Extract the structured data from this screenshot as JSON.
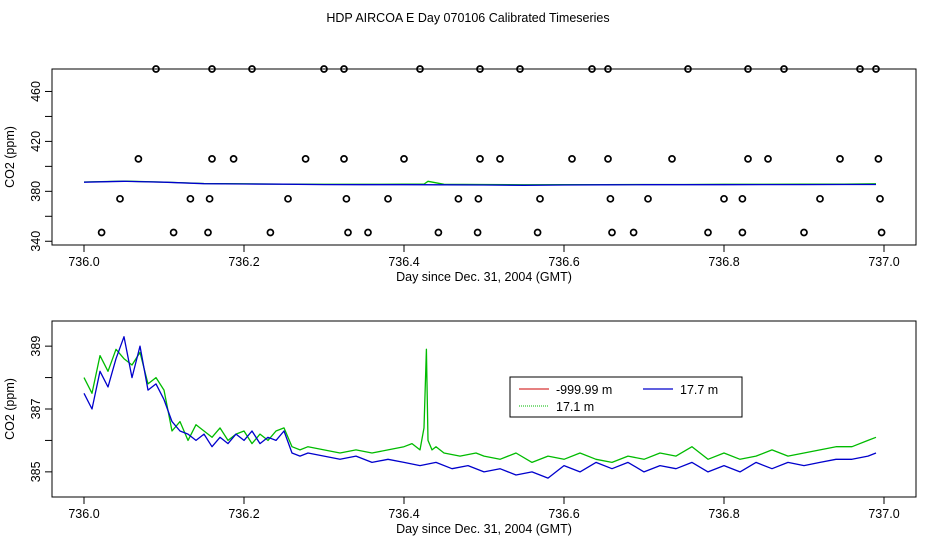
{
  "page": {
    "title": "HDP AIRCOA E  Day 070106  Calibrated Timeseries"
  },
  "chart_data": [
    {
      "type": "scatter",
      "xlabel": "Day since Dec. 31, 2004 (GMT)",
      "ylabel": "CO2 (ppm)",
      "xlim": [
        735.96,
        737.04
      ],
      "ylim": [
        337,
        478
      ],
      "xticks": [
        "736.0",
        "736.2",
        "736.4",
        "736.6",
        "736.8",
        "737.0"
      ],
      "yticks": [
        "340",
        "380",
        "420",
        "460"
      ],
      "xtick_values": [
        736.0,
        736.2,
        736.4,
        736.6,
        736.8,
        737.0
      ],
      "ytick_values": [
        340,
        380,
        420,
        460
      ],
      "ytick_extra_values": [
        360,
        400,
        440
      ],
      "marker_color": "#000000",
      "points": {
        "x": [
          736.09,
          736.16,
          736.21,
          736.3,
          736.325,
          736.42,
          736.495,
          736.545,
          736.635,
          736.655,
          736.755,
          736.83,
          736.875,
          736.97,
          736.99,
          736.068,
          736.16,
          736.187,
          736.277,
          736.325,
          736.4,
          736.495,
          736.52,
          736.61,
          736.655,
          736.735,
          736.83,
          736.855,
          736.945,
          736.993,
          736.045,
          736.133,
          736.157,
          736.255,
          736.328,
          736.38,
          736.468,
          736.493,
          736.57,
          736.658,
          736.705,
          736.8,
          736.823,
          736.92,
          736.995,
          736.022,
          736.112,
          736.155,
          736.233,
          736.33,
          736.355,
          736.443,
          736.492,
          736.567,
          736.66,
          736.687,
          736.78,
          736.823,
          736.9,
          736.997
        ],
        "y": [
          478,
          478,
          478,
          478,
          478,
          478,
          478,
          478,
          478,
          478,
          478,
          478,
          478,
          478,
          478,
          406,
          406,
          406,
          406,
          406,
          406,
          406,
          406,
          406,
          406,
          406,
          406,
          406,
          406,
          406,
          374,
          374,
          374,
          374,
          374,
          374,
          374,
          374,
          374,
          374,
          374,
          374,
          374,
          374,
          374,
          347,
          347,
          347,
          347,
          347,
          347,
          347,
          347,
          347,
          347,
          347,
          347,
          347,
          347,
          347
        ]
      },
      "series": [
        {
          "color": "#00bb00",
          "x": [
            736.0,
            736.05,
            736.1,
            736.15,
            736.2,
            736.25,
            736.3,
            736.35,
            736.4,
            736.425,
            736.43,
            736.45,
            736.5,
            736.55,
            736.6,
            736.65,
            736.7,
            736.75,
            736.8,
            736.85,
            736.9,
            736.95,
            736.99
          ],
          "y": [
            387.5,
            388.2,
            387.4,
            386.3,
            386.0,
            385.8,
            385.6,
            385.6,
            385.7,
            385.8,
            388.0,
            385.6,
            385.5,
            385.2,
            385.4,
            385.4,
            385.5,
            385.5,
            385.6,
            385.6,
            385.7,
            385.8,
            386.0
          ]
        },
        {
          "color": "#0000cc",
          "x": [
            736.0,
            736.05,
            736.1,
            736.15,
            736.2,
            736.25,
            736.3,
            736.35,
            736.4,
            736.45,
            736.5,
            736.55,
            736.6,
            736.65,
            736.7,
            736.75,
            736.8,
            736.85,
            736.9,
            736.95,
            736.99
          ],
          "y": [
            387.3,
            388.0,
            387.3,
            386.1,
            385.9,
            385.7,
            385.4,
            385.3,
            385.3,
            385.2,
            385.1,
            384.8,
            385.1,
            385.2,
            385.3,
            385.3,
            385.3,
            385.4,
            385.4,
            385.5,
            385.5
          ]
        }
      ]
    },
    {
      "type": "line",
      "xlabel": "Day since Dec. 31, 2004 (GMT)",
      "ylabel": "CO2 (ppm)",
      "xlim": [
        735.96,
        737.04
      ],
      "ylim": [
        384.2,
        389.8
      ],
      "xticks": [
        "736.0",
        "736.2",
        "736.4",
        "736.6",
        "736.8",
        "737.0"
      ],
      "yticks": [
        "385",
        "387",
        "389"
      ],
      "xtick_values": [
        736.0,
        736.2,
        736.4,
        736.6,
        736.8,
        737.0
      ],
      "ytick_values": [
        385,
        387,
        389
      ],
      "ytick_extra_values": [
        386,
        388
      ],
      "legend": {
        "placement": "center-right",
        "entries": [
          {
            "label": "-999.99 m",
            "color": "#cc0000"
          },
          {
            "label": "17.7 m",
            "color": "#0000cc"
          },
          {
            "label": "17.1 m",
            "color": "#00bb00"
          }
        ]
      },
      "series": [
        {
          "name": "17.1 m",
          "color": "#00bb00",
          "x": [
            736.0,
            736.01,
            736.02,
            736.03,
            736.04,
            736.05,
            736.06,
            736.07,
            736.08,
            736.09,
            736.1,
            736.11,
            736.12,
            736.13,
            736.14,
            736.15,
            736.16,
            736.17,
            736.18,
            736.19,
            736.2,
            736.21,
            736.22,
            736.23,
            736.24,
            736.25,
            736.26,
            736.27,
            736.28,
            736.3,
            736.32,
            736.34,
            736.36,
            736.38,
            736.4,
            736.41,
            736.42,
            736.425,
            736.428,
            736.43,
            736.435,
            736.44,
            736.45,
            736.47,
            736.49,
            736.5,
            736.52,
            736.54,
            736.56,
            736.58,
            736.6,
            736.62,
            736.64,
            736.66,
            736.68,
            736.7,
            736.72,
            736.74,
            736.76,
            736.78,
            736.8,
            736.82,
            736.84,
            736.86,
            736.88,
            736.9,
            736.92,
            736.94,
            736.96,
            736.98,
            736.99
          ],
          "y": [
            388.0,
            387.5,
            388.7,
            388.2,
            388.9,
            388.6,
            388.4,
            388.8,
            387.8,
            388.0,
            387.6,
            386.3,
            386.6,
            386.0,
            386.5,
            386.3,
            386.1,
            386.4,
            386.0,
            386.2,
            386.3,
            385.9,
            386.2,
            386.0,
            386.3,
            386.4,
            385.8,
            385.7,
            385.8,
            385.7,
            385.6,
            385.7,
            385.6,
            385.7,
            385.8,
            385.9,
            385.7,
            386.4,
            388.9,
            386.0,
            385.7,
            385.8,
            385.6,
            385.5,
            385.6,
            385.5,
            385.4,
            385.6,
            385.3,
            385.5,
            385.4,
            385.6,
            385.4,
            385.3,
            385.5,
            385.4,
            385.6,
            385.5,
            385.8,
            385.4,
            385.6,
            385.4,
            385.5,
            385.7,
            385.5,
            385.6,
            385.7,
            385.8,
            385.8,
            386.0,
            386.1
          ]
        },
        {
          "name": "17.7 m",
          "color": "#0000cc",
          "x": [
            736.0,
            736.01,
            736.02,
            736.03,
            736.04,
            736.05,
            736.06,
            736.07,
            736.08,
            736.09,
            736.1,
            736.11,
            736.12,
            736.13,
            736.14,
            736.15,
            736.16,
            736.17,
            736.18,
            736.19,
            736.2,
            736.21,
            736.22,
            736.23,
            736.24,
            736.25,
            736.26,
            736.27,
            736.28,
            736.3,
            736.32,
            736.34,
            736.36,
            736.38,
            736.4,
            736.42,
            736.44,
            736.46,
            736.48,
            736.5,
            736.52,
            736.54,
            736.56,
            736.58,
            736.6,
            736.62,
            736.64,
            736.66,
            736.68,
            736.7,
            736.72,
            736.74,
            736.76,
            736.78,
            736.8,
            736.82,
            736.84,
            736.86,
            736.88,
            736.9,
            736.92,
            736.94,
            736.96,
            736.98,
            736.99
          ],
          "y": [
            387.5,
            387.0,
            388.2,
            387.7,
            388.6,
            389.3,
            388.0,
            389.0,
            387.6,
            387.8,
            387.3,
            386.6,
            386.3,
            386.2,
            386.0,
            386.2,
            385.8,
            386.1,
            385.9,
            386.2,
            386.0,
            386.3,
            385.9,
            386.1,
            386.0,
            386.3,
            385.6,
            385.5,
            385.6,
            385.5,
            385.4,
            385.5,
            385.3,
            385.4,
            385.3,
            385.2,
            385.3,
            385.1,
            385.2,
            385.0,
            385.1,
            384.9,
            385.0,
            384.8,
            385.2,
            385.0,
            385.3,
            385.1,
            385.3,
            385.0,
            385.2,
            385.1,
            385.3,
            385.0,
            385.2,
            385.0,
            385.3,
            385.1,
            385.3,
            385.2,
            385.3,
            385.4,
            385.4,
            385.5,
            385.6
          ]
        }
      ]
    }
  ]
}
